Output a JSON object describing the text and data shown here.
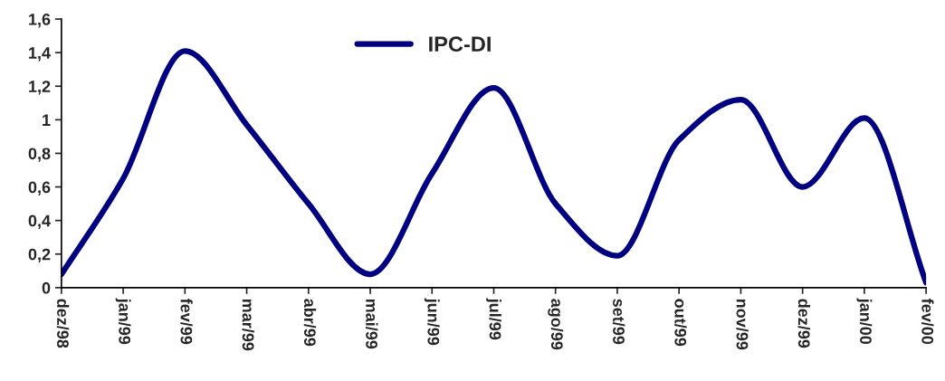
{
  "chart_data": {
    "type": "line",
    "categories": [
      "dez/98",
      "jan/99",
      "fev/99",
      "mar/99",
      "abr/99",
      "mai/99",
      "jun/99",
      "jul/99",
      "ago/99",
      "set/99",
      "out/99",
      "nov/99",
      "dez/99",
      "jan/00",
      "fev/00"
    ],
    "series": [
      {
        "name": "IPC-DI",
        "color": "#000080",
        "values": [
          0.08,
          0.65,
          1.41,
          0.97,
          0.5,
          0.08,
          0.68,
          1.19,
          0.5,
          0.19,
          0.88,
          1.12,
          0.6,
          1.01,
          0.03
        ]
      }
    ],
    "ylim": [
      0,
      1.6
    ],
    "yticks": [
      0,
      {
        "value": 0.2,
        "label": "0,2"
      },
      {
        "value": 0.4,
        "label": "0,4"
      },
      {
        "value": 0.6,
        "label": "0,6"
      },
      {
        "value": 0.8,
        "label": "0,8"
      },
      1,
      {
        "value": 1.2,
        "label": "1,2"
      },
      {
        "value": 1.4,
        "label": "1,4"
      },
      {
        "value": 1.6,
        "label": "1,6"
      }
    ],
    "grid": false,
    "legend": "top",
    "marker": "none",
    "line_style": "solid"
  }
}
